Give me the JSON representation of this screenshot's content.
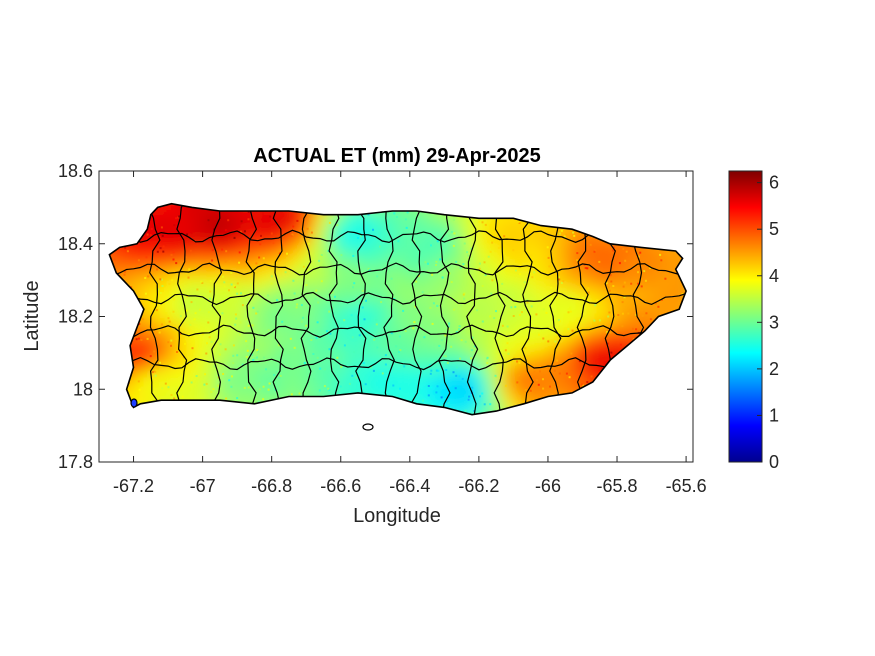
{
  "chart_data": {
    "type": "heatmap",
    "title": "ACTUAL ET (mm) 29-Apr-2025",
    "xlabel": "Longitude",
    "ylabel": "Latitude",
    "xlim": [
      -67.3,
      -65.58
    ],
    "ylim": [
      17.8,
      18.6
    ],
    "xticks": [
      {
        "value": -67.2,
        "label": "-67.2"
      },
      {
        "value": -67.0,
        "label": "-67"
      },
      {
        "value": -66.8,
        "label": "-66.8"
      },
      {
        "value": -66.6,
        "label": "-66.6"
      },
      {
        "value": -66.4,
        "label": "-66.4"
      },
      {
        "value": -66.2,
        "label": "-66.2"
      },
      {
        "value": -66.0,
        "label": "-66"
      },
      {
        "value": -65.8,
        "label": "-65.8"
      },
      {
        "value": -65.6,
        "label": "-65.6"
      }
    ],
    "yticks": [
      {
        "value": 17.8,
        "label": "17.8"
      },
      {
        "value": 18.0,
        "label": "18"
      },
      {
        "value": 18.2,
        "label": "18.2"
      },
      {
        "value": 18.4,
        "label": "18.4"
      },
      {
        "value": 18.6,
        "label": "18.6"
      }
    ],
    "colorbar": {
      "colormap": "jet",
      "clim": [
        0,
        6.25
      ],
      "ticks": [
        {
          "value": 0,
          "label": "0"
        },
        {
          "value": 1,
          "label": "1"
        },
        {
          "value": 2,
          "label": "2"
        },
        {
          "value": 3,
          "label": "3"
        },
        {
          "value": 4,
          "label": "4"
        },
        {
          "value": 5,
          "label": "5"
        },
        {
          "value": 6,
          "label": "6"
        }
      ]
    },
    "outline": [
      [
        -67.27,
        18.37
      ],
      [
        -67.24,
        18.39
      ],
      [
        -67.19,
        18.4
      ],
      [
        -67.16,
        18.44
      ],
      [
        -67.15,
        18.48
      ],
      [
        -67.13,
        18.5
      ],
      [
        -67.09,
        18.51
      ],
      [
        -67.03,
        18.5
      ],
      [
        -66.95,
        18.49
      ],
      [
        -66.85,
        18.49
      ],
      [
        -66.75,
        18.49
      ],
      [
        -66.65,
        18.48
      ],
      [
        -66.55,
        18.48
      ],
      [
        -66.45,
        18.49
      ],
      [
        -66.38,
        18.49
      ],
      [
        -66.3,
        18.48
      ],
      [
        -66.2,
        18.47
      ],
      [
        -66.1,
        18.47
      ],
      [
        -66.02,
        18.45
      ],
      [
        -65.93,
        18.44
      ],
      [
        -65.87,
        18.42
      ],
      [
        -65.82,
        18.4
      ],
      [
        -65.73,
        18.39
      ],
      [
        -65.63,
        18.38
      ],
      [
        -65.61,
        18.36
      ],
      [
        -65.63,
        18.33
      ],
      [
        -65.6,
        18.27
      ],
      [
        -65.62,
        18.22
      ],
      [
        -65.68,
        18.2
      ],
      [
        -65.72,
        18.16
      ],
      [
        -65.77,
        18.12
      ],
      [
        -65.82,
        18.08
      ],
      [
        -65.87,
        18.02
      ],
      [
        -65.93,
        17.99
      ],
      [
        -66.0,
        17.98
      ],
      [
        -66.07,
        17.96
      ],
      [
        -66.15,
        17.94
      ],
      [
        -66.22,
        17.93
      ],
      [
        -66.3,
        17.95
      ],
      [
        -66.38,
        17.96
      ],
      [
        -66.45,
        17.98
      ],
      [
        -66.55,
        17.99
      ],
      [
        -66.65,
        17.98
      ],
      [
        -66.75,
        17.98
      ],
      [
        -66.85,
        17.96
      ],
      [
        -66.95,
        17.97
      ],
      [
        -67.05,
        17.97
      ],
      [
        -67.12,
        17.97
      ],
      [
        -67.18,
        17.96
      ],
      [
        -67.2,
        17.95
      ],
      [
        -67.22,
        18.0
      ],
      [
        -67.2,
        18.06
      ],
      [
        -67.21,
        18.12
      ],
      [
        -67.19,
        18.17
      ],
      [
        -67.17,
        18.22
      ],
      [
        -67.2,
        18.27
      ],
      [
        -67.25,
        18.32
      ]
    ],
    "municipality_grid": {
      "lon": [
        -67.14,
        -67.06,
        -66.96,
        -66.86,
        -66.78,
        -66.7,
        -66.62,
        -66.54,
        -66.46,
        -66.38,
        -66.3,
        -66.22,
        -66.14,
        -66.06,
        -65.98,
        -65.9,
        -65.82,
        -65.74
      ],
      "lat": [
        18.42,
        18.33,
        18.25,
        18.16,
        18.07
      ]
    },
    "field_samples": {
      "description_values_mm": [
        {
          "lon": -67.1,
          "lat": 18.44,
          "et": 5.7
        },
        {
          "lon": -66.95,
          "lat": 18.46,
          "et": 5.9
        },
        {
          "lon": -66.78,
          "lat": 18.47,
          "et": 5.6
        },
        {
          "lon": -66.55,
          "lat": 18.43,
          "et": 2.4
        },
        {
          "lon": -66.35,
          "lat": 18.4,
          "et": 2.8
        },
        {
          "lon": -66.1,
          "lat": 18.42,
          "et": 4.2
        },
        {
          "lon": -65.85,
          "lat": 18.36,
          "et": 4.9
        },
        {
          "lon": -65.7,
          "lat": 18.3,
          "et": 4.6
        },
        {
          "lon": -67.2,
          "lat": 18.1,
          "et": 5.2
        },
        {
          "lon": -67.0,
          "lat": 18.25,
          "et": 3.6
        },
        {
          "lon": -66.75,
          "lat": 18.2,
          "et": 3.1
        },
        {
          "lon": -66.55,
          "lat": 18.18,
          "et": 2.6
        },
        {
          "lon": -66.35,
          "lat": 18.2,
          "et": 3.2
        },
        {
          "lon": -66.15,
          "lat": 18.22,
          "et": 3.5
        },
        {
          "lon": -65.95,
          "lat": 18.22,
          "et": 3.7
        },
        {
          "lon": -65.82,
          "lat": 18.08,
          "et": 5.6
        },
        {
          "lon": -66.05,
          "lat": 18.02,
          "et": 4.8
        },
        {
          "lon": -66.25,
          "lat": 18.0,
          "et": 2.0
        },
        {
          "lon": -66.5,
          "lat": 18.02,
          "et": 2.5
        },
        {
          "lon": -66.85,
          "lat": 18.03,
          "et": 3.0
        },
        {
          "lon": -67.1,
          "lat": 18.02,
          "et": 3.8
        }
      ]
    }
  }
}
